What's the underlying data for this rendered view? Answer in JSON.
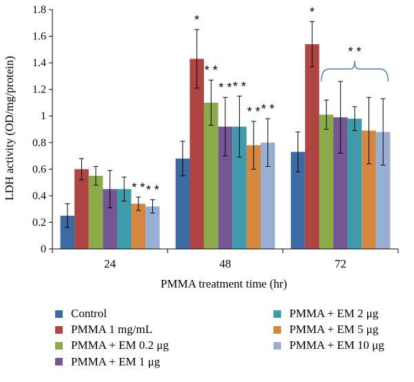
{
  "chart_data": {
    "type": "bar",
    "title": "",
    "xlabel": "PMMA treatment time (hr)",
    "ylabel": "LDH activity (OD/mg/protein)",
    "ylim": [
      0,
      1.8
    ],
    "yticks": [
      "0",
      "0.2",
      "0.4",
      "0.6",
      "0.8",
      "1",
      "1.2",
      "1.4",
      "1.6",
      "1.8"
    ],
    "categories": [
      "24",
      "48",
      "72"
    ],
    "series": [
      {
        "name": "Control",
        "color": "#3d6aa2",
        "values": [
          0.25,
          0.68,
          0.73
        ],
        "errors": [
          0.09,
          0.13,
          0.15
        ],
        "marks": [
          "",
          "",
          ""
        ]
      },
      {
        "name": "PMMA 1 mg/mL",
        "color": "#ae4543",
        "values": [
          0.6,
          1.43,
          1.54
        ],
        "errors": [
          0.08,
          0.22,
          0.17
        ],
        "marks": [
          "",
          "*",
          "*"
        ]
      },
      {
        "name": "PMMA + EM 0.2 μg",
        "color": "#8bab4b",
        "values": [
          0.55,
          1.1,
          1.01
        ],
        "errors": [
          0.07,
          0.17,
          0.11
        ],
        "marks": [
          "",
          "**",
          ""
        ]
      },
      {
        "name": "PMMA + EM 1 μg",
        "color": "#735693",
        "values": [
          0.45,
          0.92,
          0.99
        ],
        "errors": [
          0.14,
          0.22,
          0.27
        ],
        "marks": [
          "",
          "**",
          ""
        ]
      },
      {
        "name": "PMMA + EM 2 μg",
        "color": "#3f9aac",
        "values": [
          0.45,
          0.92,
          0.98
        ],
        "errors": [
          0.09,
          0.23,
          0.09
        ],
        "marks": [
          "",
          "**",
          ""
        ]
      },
      {
        "name": "PMMA + EM 5 μg",
        "color": "#d6873f",
        "values": [
          0.34,
          0.78,
          0.89
        ],
        "errors": [
          0.05,
          0.18,
          0.25
        ],
        "marks": [
          "**",
          "**",
          ""
        ]
      },
      {
        "name": "PMMA + EM 10 μg",
        "color": "#98aed3",
        "values": [
          0.32,
          0.8,
          0.88
        ],
        "errors": [
          0.05,
          0.18,
          0.25
        ],
        "marks": [
          "**",
          "**",
          ""
        ]
      }
    ],
    "annotations": [
      {
        "category": "72",
        "from_series": 2,
        "to_series": 6,
        "text": "**",
        "type": "bracket"
      }
    ],
    "grid": false,
    "legend": "bottom, two columns"
  }
}
